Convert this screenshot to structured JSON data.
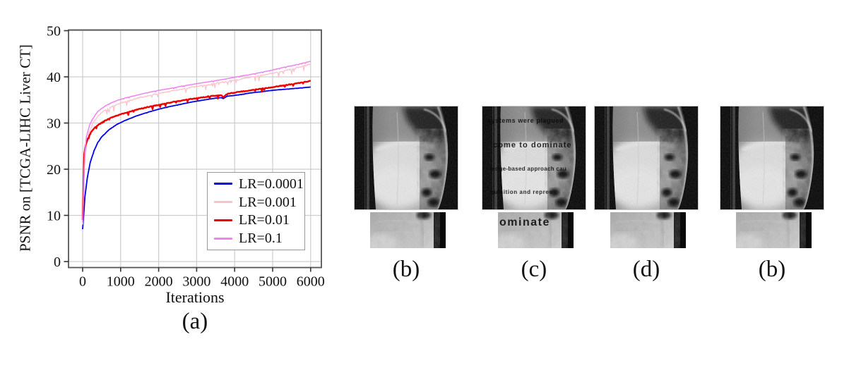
{
  "figure": {
    "captions": {
      "a": "(a)",
      "b1": "(b)",
      "c": "(c)",
      "d": "(d)",
      "b2": "(b)"
    }
  },
  "chart_data": {
    "type": "line",
    "title": "",
    "xlabel": "Iterations",
    "ylabel": "PSNR on [TCGA-LIHC Liver CT]",
    "xlim": [
      -370,
      6280
    ],
    "ylim": [
      -1.3,
      50.2
    ],
    "xticks": [
      0,
      1000,
      2000,
      3000,
      4000,
      5000,
      6000
    ],
    "yticks": [
      0,
      10,
      20,
      30,
      40,
      50
    ],
    "grid": true,
    "legend_position": "lower right",
    "series": [
      {
        "name": "LR=0.0001",
        "color": "#0000ee",
        "noise": 0.03,
        "points": [
          [
            0,
            7
          ],
          [
            60,
            14
          ],
          [
            120,
            18
          ],
          [
            200,
            21.5
          ],
          [
            300,
            24
          ],
          [
            400,
            25.8
          ],
          [
            500,
            27
          ],
          [
            700,
            28.6
          ],
          [
            900,
            29.7
          ],
          [
            1100,
            30.5
          ],
          [
            1400,
            31.5
          ],
          [
            1700,
            32.3
          ],
          [
            2000,
            33
          ],
          [
            2300,
            33.6
          ],
          [
            2600,
            34.1
          ],
          [
            2900,
            34.6
          ],
          [
            3200,
            35
          ],
          [
            3500,
            35.4
          ],
          [
            3650,
            35.5
          ],
          [
            3700,
            35.3
          ],
          [
            3800,
            35.8
          ],
          [
            4100,
            36.1
          ],
          [
            4400,
            36.5
          ],
          [
            4700,
            36.8
          ],
          [
            5000,
            37.1
          ],
          [
            5300,
            37.3
          ],
          [
            5600,
            37.5
          ],
          [
            6000,
            37.8
          ]
        ]
      },
      {
        "name": "LR=0.001",
        "color": "#ffc0cb",
        "noise": 0.5,
        "points": [
          [
            0,
            8
          ],
          [
            50,
            21
          ],
          [
            100,
            25.5
          ],
          [
            180,
            28.3
          ],
          [
            280,
            30.2
          ],
          [
            400,
            31.6
          ],
          [
            550,
            32.7
          ],
          [
            700,
            33.4
          ],
          [
            900,
            34.1
          ],
          [
            1100,
            34.7
          ],
          [
            1400,
            35.4
          ],
          [
            1700,
            36
          ],
          [
            2000,
            36.5
          ],
          [
            2300,
            37
          ],
          [
            2600,
            37.4
          ],
          [
            2900,
            37.9
          ],
          [
            3200,
            38.3
          ],
          [
            3500,
            38.7
          ],
          [
            3800,
            39.1
          ],
          [
            4100,
            39.5
          ],
          [
            4400,
            40
          ],
          [
            4700,
            40.4
          ],
          [
            5000,
            40.9
          ],
          [
            5300,
            41.4
          ],
          [
            5600,
            42
          ],
          [
            6000,
            42.9
          ]
        ]
      },
      {
        "name": "LR=0.01",
        "color": "#ee0000",
        "noise": 0.28,
        "points": [
          [
            0,
            9
          ],
          [
            40,
            23.3
          ],
          [
            80,
            25.2
          ],
          [
            150,
            27
          ],
          [
            250,
            28.4
          ],
          [
            350,
            29.3
          ],
          [
            500,
            30.2
          ],
          [
            700,
            31
          ],
          [
            900,
            31.7
          ],
          [
            1100,
            32.2
          ],
          [
            1400,
            32.9
          ],
          [
            1700,
            33.5
          ],
          [
            2000,
            34
          ],
          [
            2300,
            34.5
          ],
          [
            2600,
            34.9
          ],
          [
            2900,
            35.3
          ],
          [
            3200,
            35.7
          ],
          [
            3500,
            36
          ],
          [
            3650,
            36.1
          ],
          [
            3700,
            35.6
          ],
          [
            3800,
            36.4
          ],
          [
            4100,
            36.8
          ],
          [
            4400,
            37.1
          ],
          [
            4700,
            37.5
          ],
          [
            5000,
            37.8
          ],
          [
            5300,
            38.2
          ],
          [
            5600,
            38.6
          ],
          [
            6000,
            39.2
          ]
        ]
      },
      {
        "name": "LR=0.1",
        "color": "#ee82ee",
        "noise": 0.09,
        "points": [
          [
            0,
            8.5
          ],
          [
            50,
            23
          ],
          [
            100,
            27
          ],
          [
            180,
            29.5
          ],
          [
            280,
            31.2
          ],
          [
            400,
            32.5
          ],
          [
            550,
            33.5
          ],
          [
            700,
            34.2
          ],
          [
            900,
            34.9
          ],
          [
            1100,
            35.4
          ],
          [
            1400,
            36
          ],
          [
            1700,
            36.6
          ],
          [
            2000,
            37.1
          ],
          [
            2300,
            37.5
          ],
          [
            2600,
            38
          ],
          [
            2900,
            38.4
          ],
          [
            3200,
            38.8
          ],
          [
            3500,
            39.2
          ],
          [
            3800,
            39.6
          ],
          [
            4100,
            40.1
          ],
          [
            4400,
            40.5
          ],
          [
            4700,
            41
          ],
          [
            5000,
            41.5
          ],
          [
            5300,
            42.1
          ],
          [
            5600,
            42.6
          ],
          [
            6000,
            43.4
          ]
        ]
      }
    ]
  },
  "xray_overlays": {
    "lines": [
      "systems were plagued",
      "come to dominate",
      "ledge-based approach cau",
      "quisition and repres"
    ],
    "crop_text": "ominate"
  }
}
